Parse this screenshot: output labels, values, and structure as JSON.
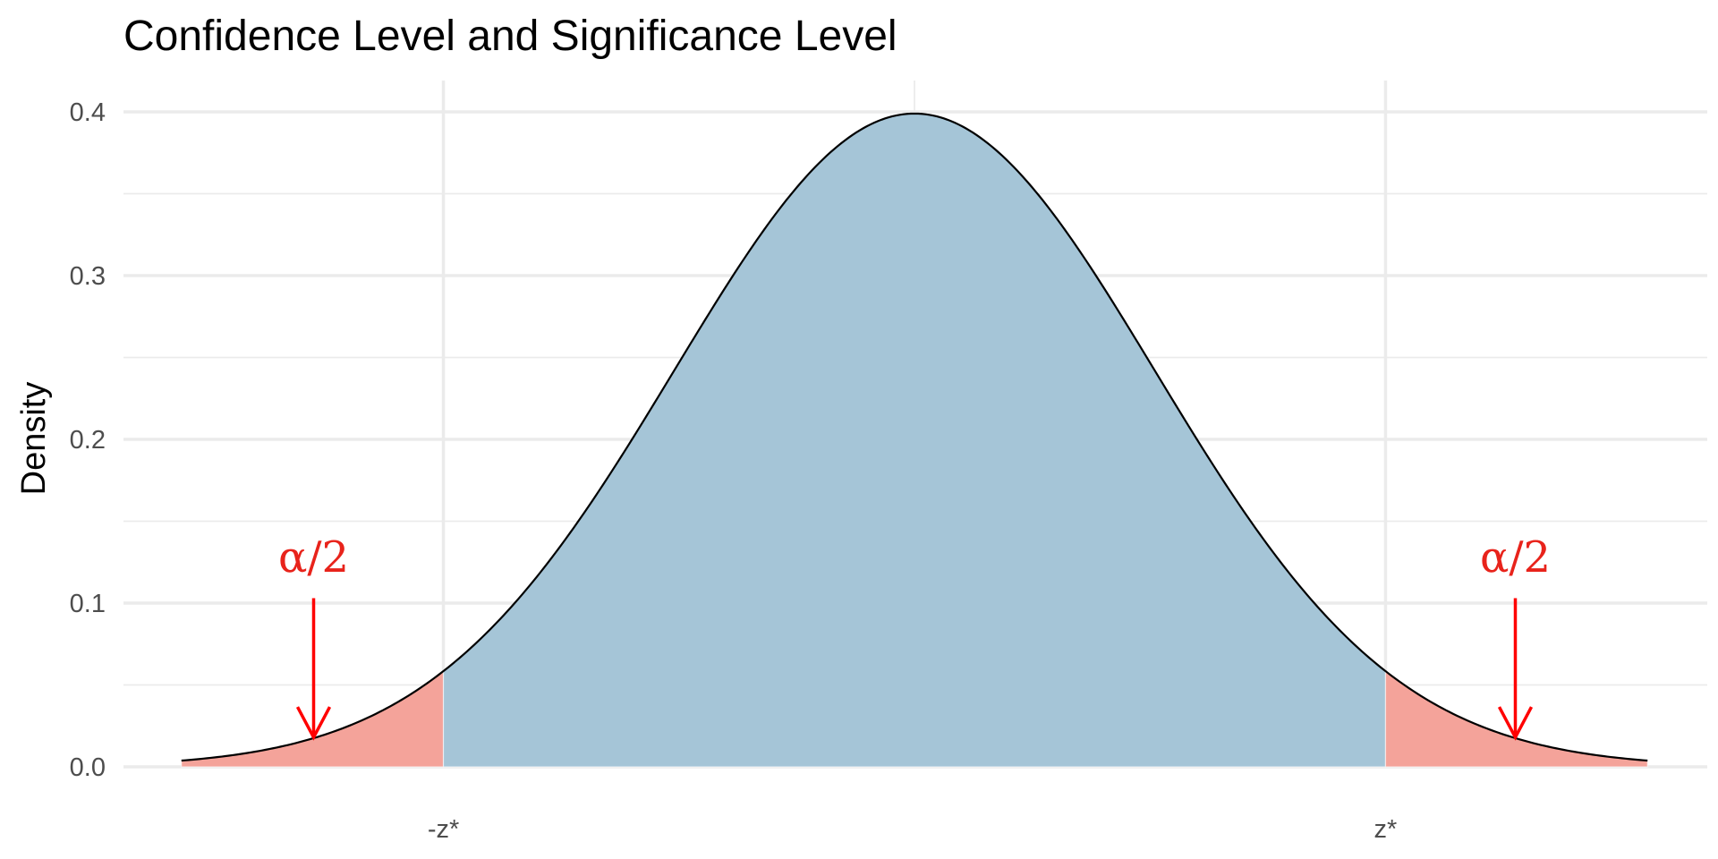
{
  "chart_data": {
    "type": "area",
    "title": "Confidence Level and Significance Level",
    "xlabel": "",
    "ylabel": "Density",
    "distribution": "standard normal density",
    "xlim": [
      -3.3,
      3.3
    ],
    "ylim": [
      0,
      0.41
    ],
    "x_range": [
      -3.05,
      3.05
    ],
    "x_ticks": [
      {
        "value": -1.96,
        "label": "-z*"
      },
      {
        "value": 1.96,
        "label": "z*"
      }
    ],
    "x_minor_gridlines": [
      0
    ],
    "y_ticks": [
      {
        "value": 0.0,
        "label": "0.0"
      },
      {
        "value": 0.1,
        "label": "0.1"
      },
      {
        "value": 0.2,
        "label": "0.2"
      },
      {
        "value": 0.3,
        "label": "0.3"
      },
      {
        "value": 0.4,
        "label": "0.4"
      }
    ],
    "y_minor_gridlines": [
      0.05,
      0.15,
      0.25,
      0.35
    ],
    "regions": [
      {
        "from": -3.05,
        "to": -1.96,
        "color": "#f4a097"
      },
      {
        "from": -1.96,
        "to": 1.96,
        "color": "#a2c3d6"
      },
      {
        "from": 1.96,
        "to": 3.05,
        "color": "#f4a097"
      }
    ],
    "annotations": [
      {
        "label": "α/2",
        "x": -2.5,
        "arrow_from_y": 0.103,
        "arrow_to_y": 0.018,
        "color": "#e8231b"
      },
      {
        "label": "α/2",
        "x": 2.5,
        "arrow_from_y": 0.103,
        "arrow_to_y": 0.018,
        "color": "#e8231b"
      }
    ],
    "curve_color": "#000000",
    "grid": true,
    "legend": "none"
  }
}
